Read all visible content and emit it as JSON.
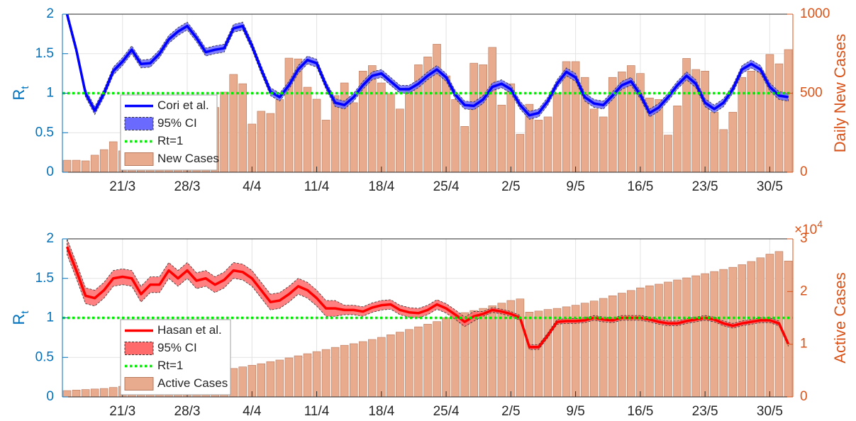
{
  "chart_data": [
    {
      "type": "combo",
      "ylabel": "R",
      "ylabel_subscript": "t",
      "y2label": "Daily New Cases",
      "categories": [
        null,
        null,
        null,
        null,
        null,
        null,
        "21/3",
        null,
        null,
        null,
        null,
        null,
        null,
        "28/3",
        null,
        null,
        null,
        null,
        null,
        null,
        "4/4",
        null,
        null,
        null,
        null,
        null,
        null,
        "11/4",
        null,
        null,
        null,
        null,
        null,
        null,
        "18/4",
        null,
        null,
        null,
        null,
        null,
        null,
        "25/4",
        null,
        null,
        null,
        null,
        null,
        null,
        "2/5",
        null,
        null,
        null,
        null,
        null,
        null,
        "9/5",
        null,
        null,
        null,
        null,
        null,
        null,
        "16/5",
        null,
        null,
        null,
        null,
        null,
        null,
        "23/5",
        null,
        null,
        null,
        null,
        null,
        null,
        "30/5",
        null,
        null
      ],
      "ylim": [
        0,
        2
      ],
      "yticks": [
        0,
        0.5,
        1,
        1.5,
        2
      ],
      "y2lim": [
        0,
        1000
      ],
      "y2ticks": [
        0,
        500,
        1000
      ],
      "y_color": "#0072bd",
      "y2_color": "#d95319",
      "grid": true,
      "legend": "lower left",
      "series": [
        {
          "name": "Cori et al.",
          "type": "line",
          "color": "#0000ff",
          "values": [
            2.0,
            1.55,
            1.0,
            0.78,
            1.0,
            1.28,
            1.4,
            1.55,
            1.37,
            1.38,
            1.5,
            1.68,
            1.78,
            1.85,
            1.7,
            1.52,
            1.55,
            1.57,
            1.82,
            1.85,
            1.6,
            1.3,
            1.02,
            0.95,
            1.1,
            1.3,
            1.42,
            1.38,
            1.1,
            0.88,
            0.85,
            0.95,
            1.1,
            1.22,
            1.25,
            1.15,
            1.05,
            1.05,
            1.12,
            1.22,
            1.3,
            1.2,
            0.98,
            0.85,
            0.84,
            0.92,
            1.08,
            1.12,
            1.05,
            0.85,
            0.72,
            0.75,
            0.9,
            1.12,
            1.27,
            1.2,
            0.95,
            0.87,
            0.85,
            0.97,
            1.1,
            1.15,
            0.98,
            0.75,
            0.82,
            0.95,
            1.1,
            1.22,
            1.12,
            0.88,
            0.8,
            0.88,
            1.05,
            1.3,
            1.37,
            1.3,
            1.08,
            0.97,
            0.95
          ]
        },
        {
          "name": "95% CI",
          "type": "band",
          "color": "#6a6aff",
          "lower": [
            1.95,
            1.5,
            0.95,
            0.73,
            0.95,
            1.23,
            1.35,
            1.5,
            1.32,
            1.33,
            1.45,
            1.63,
            1.73,
            1.8,
            1.65,
            1.47,
            1.5,
            1.52,
            1.77,
            1.8,
            1.55,
            1.25,
            0.97,
            0.9,
            1.05,
            1.25,
            1.37,
            1.33,
            1.05,
            0.83,
            0.8,
            0.9,
            1.05,
            1.17,
            1.2,
            1.1,
            1.0,
            1.0,
            1.07,
            1.17,
            1.25,
            1.15,
            0.93,
            0.8,
            0.79,
            0.87,
            1.03,
            1.07,
            1.0,
            0.8,
            0.67,
            0.7,
            0.85,
            1.07,
            1.22,
            1.15,
            0.9,
            0.82,
            0.8,
            0.92,
            1.05,
            1.1,
            0.93,
            0.7,
            0.77,
            0.9,
            1.05,
            1.17,
            1.07,
            0.83,
            0.75,
            0.83,
            1.0,
            1.25,
            1.32,
            1.25,
            1.03,
            0.92,
            0.9
          ],
          "upper": [
            2.05,
            1.6,
            1.05,
            0.83,
            1.05,
            1.33,
            1.45,
            1.6,
            1.42,
            1.43,
            1.55,
            1.73,
            1.83,
            1.9,
            1.75,
            1.57,
            1.6,
            1.62,
            1.87,
            1.9,
            1.65,
            1.35,
            1.07,
            1.0,
            1.15,
            1.35,
            1.47,
            1.43,
            1.15,
            0.93,
            0.9,
            1.0,
            1.15,
            1.27,
            1.3,
            1.2,
            1.1,
            1.1,
            1.17,
            1.27,
            1.35,
            1.25,
            1.03,
            0.9,
            0.89,
            0.97,
            1.13,
            1.17,
            1.1,
            0.9,
            0.77,
            0.8,
            0.95,
            1.17,
            1.32,
            1.25,
            1.0,
            0.92,
            0.9,
            1.02,
            1.15,
            1.2,
            1.03,
            0.8,
            0.87,
            1.0,
            1.15,
            1.27,
            1.17,
            0.93,
            0.85,
            0.93,
            1.1,
            1.35,
            1.42,
            1.35,
            1.13,
            1.02,
            1.0
          ]
        },
        {
          "name": "Rt=1",
          "type": "hline",
          "color": "#00ee00",
          "value": 1
        },
        {
          "name": "New Cases",
          "type": "bar",
          "axis": "y2",
          "color": "#e9ab8d",
          "values": [
            76,
            76,
            72,
            108,
            143,
            193,
            135,
            180,
            210,
            240,
            260,
            280,
            300,
            320,
            350,
            380,
            410,
            507,
            619,
            560,
            305,
            386,
            372,
            460,
            722,
            717,
            538,
            462,
            330,
            485,
            565,
            440,
            640,
            675,
            565,
            495,
            400,
            540,
            680,
            730,
            810,
            610,
            460,
            290,
            690,
            680,
            790,
            425,
            560,
            240,
            430,
            330,
            350,
            500,
            700,
            700,
            600,
            400,
            350,
            600,
            635,
            675,
            625,
            470,
            460,
            235,
            420,
            720,
            650,
            640,
            380,
            270,
            380,
            600,
            640,
            635,
            745,
            686,
            776
          ]
        }
      ]
    },
    {
      "type": "combo",
      "ylabel": "R",
      "ylabel_subscript": "t",
      "y2label": "Active Cases",
      "y2_multiplier": "×10",
      "y2_multiplier_exponent": "4",
      "categories": [
        null,
        null,
        null,
        null,
        null,
        null,
        "21/3",
        null,
        null,
        null,
        null,
        null,
        null,
        "28/3",
        null,
        null,
        null,
        null,
        null,
        null,
        "4/4",
        null,
        null,
        null,
        null,
        null,
        null,
        "11/4",
        null,
        null,
        null,
        null,
        null,
        null,
        "18/4",
        null,
        null,
        null,
        null,
        null,
        null,
        "25/4",
        null,
        null,
        null,
        null,
        null,
        null,
        "2/5",
        null,
        null,
        null,
        null,
        null,
        null,
        "9/5",
        null,
        null,
        null,
        null,
        null,
        null,
        "16/5",
        null,
        null,
        null,
        null,
        null,
        null,
        "23/5",
        null,
        null,
        null,
        null,
        null,
        null,
        "30/5",
        null,
        null
      ],
      "ylim": [
        0,
        2
      ],
      "yticks": [
        0,
        0.5,
        1,
        1.5,
        2
      ],
      "y2lim": [
        0,
        30000
      ],
      "y2ticks": [
        {
          "value": 0,
          "label": "0"
        },
        {
          "value": 10000,
          "label": "1"
        },
        {
          "value": 20000,
          "label": "2"
        },
        {
          "value": 30000,
          "label": "3"
        }
      ],
      "y_color": "#0072bd",
      "y2_color": "#d95319",
      "grid": true,
      "legend": "lower left",
      "series": [
        {
          "name": "Hasan et al.",
          "type": "line",
          "color": "#ff0000",
          "values": [
            1.9,
            1.6,
            1.28,
            1.25,
            1.35,
            1.5,
            1.52,
            1.5,
            1.3,
            1.42,
            1.42,
            1.6,
            1.5,
            1.6,
            1.47,
            1.5,
            1.42,
            1.48,
            1.6,
            1.58,
            1.5,
            1.35,
            1.2,
            1.22,
            1.3,
            1.4,
            1.35,
            1.25,
            1.12,
            1.12,
            1.1,
            1.1,
            1.08,
            1.13,
            1.16,
            1.17,
            1.1,
            1.07,
            1.06,
            1.1,
            1.17,
            1.12,
            1.04,
            0.95,
            1.02,
            1.05,
            1.1,
            1.08,
            1.05,
            1.0,
            0.63,
            0.63,
            0.78,
            0.95,
            0.96,
            0.96,
            0.97,
            1.0,
            0.98,
            0.97,
            1.0,
            1.0,
            1.0,
            0.98,
            0.95,
            0.93,
            0.93,
            0.96,
            0.98,
            1.0,
            0.98,
            0.93,
            0.9,
            0.93,
            0.95,
            0.97,
            0.97,
            0.93,
            0.67
          ]
        },
        {
          "name": "95% CI",
          "type": "band",
          "color": "#ff6a6a",
          "lower": [
            1.8,
            1.5,
            1.18,
            1.15,
            1.25,
            1.4,
            1.42,
            1.4,
            1.2,
            1.32,
            1.32,
            1.5,
            1.4,
            1.5,
            1.37,
            1.4,
            1.32,
            1.38,
            1.5,
            1.48,
            1.4,
            1.25,
            1.1,
            1.12,
            1.2,
            1.3,
            1.25,
            1.15,
            1.02,
            1.02,
            1.04,
            1.04,
            1.02,
            1.07,
            1.1,
            1.11,
            1.04,
            1.01,
            1.0,
            1.04,
            1.11,
            1.06,
            0.98,
            0.89,
            0.96,
            1.02,
            1.07,
            1.05,
            1.02,
            0.97,
            0.6,
            0.6,
            0.75,
            0.92,
            0.93,
            0.93,
            0.94,
            0.97,
            0.95,
            0.94,
            0.97,
            0.97,
            0.97,
            0.95,
            0.92,
            0.9,
            0.9,
            0.93,
            0.95,
            0.97,
            0.95,
            0.9,
            0.87,
            0.9,
            0.92,
            0.94,
            0.94,
            0.9,
            0.64
          ],
          "upper": [
            2.0,
            1.7,
            1.38,
            1.35,
            1.45,
            1.6,
            1.62,
            1.6,
            1.4,
            1.52,
            1.52,
            1.7,
            1.6,
            1.7,
            1.57,
            1.6,
            1.52,
            1.58,
            1.7,
            1.68,
            1.6,
            1.45,
            1.3,
            1.32,
            1.4,
            1.5,
            1.45,
            1.35,
            1.22,
            1.22,
            1.16,
            1.16,
            1.14,
            1.19,
            1.22,
            1.23,
            1.16,
            1.13,
            1.12,
            1.16,
            1.23,
            1.18,
            1.1,
            1.01,
            1.08,
            1.08,
            1.13,
            1.11,
            1.08,
            1.03,
            0.66,
            0.66,
            0.81,
            0.98,
            0.99,
            0.99,
            1.0,
            1.03,
            1.01,
            1.0,
            1.03,
            1.03,
            1.03,
            1.01,
            0.98,
            0.96,
            0.96,
            0.99,
            1.01,
            1.03,
            1.01,
            0.96,
            0.93,
            0.96,
            0.98,
            1.0,
            1.0,
            0.96,
            0.7
          ]
        },
        {
          "name": "Rt=1",
          "type": "hline",
          "color": "#00ee00",
          "value": 1
        },
        {
          "name": "Active Cases",
          "type": "bar",
          "axis": "y2",
          "color": "#e9ab8d",
          "values": [
            1200,
            1300,
            1400,
            1500,
            1600,
            1800,
            2000,
            2200,
            2400,
            2700,
            2900,
            3200,
            3500,
            3800,
            4100,
            4400,
            4700,
            5100,
            5400,
            5700,
            6000,
            6300,
            6700,
            7000,
            7400,
            7800,
            8200,
            8600,
            9000,
            9400,
            9800,
            10100,
            10500,
            10900,
            11300,
            11800,
            12300,
            12800,
            13300,
            13800,
            14300,
            15000,
            15600,
            16000,
            16400,
            16800,
            17300,
            17800,
            18300,
            18600,
            16100,
            16300,
            16600,
            16800,
            17100,
            17400,
            17800,
            18200,
            18700,
            19200,
            19700,
            20200,
            20700,
            21100,
            21400,
            21800,
            22200,
            22600,
            23000,
            23400,
            23800,
            24200,
            24600,
            25100,
            25700,
            26400,
            27100,
            27600,
            25800
          ]
        }
      ]
    }
  ]
}
